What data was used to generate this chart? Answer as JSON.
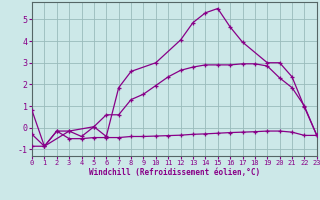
{
  "bg_color": "#cce8e8",
  "line_color": "#880088",
  "grid_color": "#99bbbb",
  "xlabel": "Windchill (Refroidissement éolien,°C)",
  "xlim": [
    0,
    23
  ],
  "ylim": [
    -1.3,
    5.8
  ],
  "xticks": [
    0,
    1,
    2,
    3,
    4,
    5,
    6,
    7,
    8,
    9,
    10,
    11,
    12,
    13,
    14,
    15,
    16,
    17,
    18,
    19,
    20,
    21,
    22,
    23
  ],
  "yticks": [
    -1,
    0,
    1,
    2,
    3,
    4,
    5
  ],
  "series": [
    {
      "x": [
        0,
        1,
        2,
        3,
        4,
        5,
        6,
        7,
        8,
        9,
        10,
        11,
        12,
        13,
        14,
        15,
        16,
        17,
        18,
        19,
        20,
        21,
        22,
        23
      ],
      "y": [
        -0.3,
        -0.85,
        -0.15,
        -0.5,
        -0.5,
        -0.45,
        -0.45,
        -0.45,
        -0.4,
        -0.4,
        -0.38,
        -0.36,
        -0.34,
        -0.3,
        -0.28,
        -0.25,
        -0.22,
        -0.2,
        -0.18,
        -0.15,
        -0.15,
        -0.2,
        -0.35,
        -0.35
      ]
    },
    {
      "x": [
        0,
        1,
        2,
        3,
        4,
        5,
        6,
        7,
        8,
        9,
        10,
        11,
        12,
        13,
        14,
        15,
        16,
        17,
        18,
        19,
        20,
        21,
        22,
        23
      ],
      "y": [
        0.8,
        -0.85,
        -0.15,
        -0.15,
        -0.4,
        0.05,
        0.6,
        0.6,
        1.3,
        1.55,
        1.95,
        2.35,
        2.65,
        2.8,
        2.9,
        2.9,
        2.9,
        2.95,
        2.95,
        2.85,
        2.3,
        1.85,
        1.0,
        -0.35
      ]
    },
    {
      "x": [
        0,
        1,
        3,
        5,
        6,
        7,
        8,
        10,
        12,
        13,
        14,
        15,
        16,
        17,
        19,
        20,
        21,
        22,
        23
      ],
      "y": [
        -0.85,
        -0.85,
        -0.15,
        0.05,
        -0.4,
        1.85,
        2.6,
        3.0,
        4.05,
        4.85,
        5.3,
        5.5,
        4.65,
        3.95,
        3.0,
        3.0,
        2.35,
        0.95,
        -0.35
      ]
    }
  ]
}
